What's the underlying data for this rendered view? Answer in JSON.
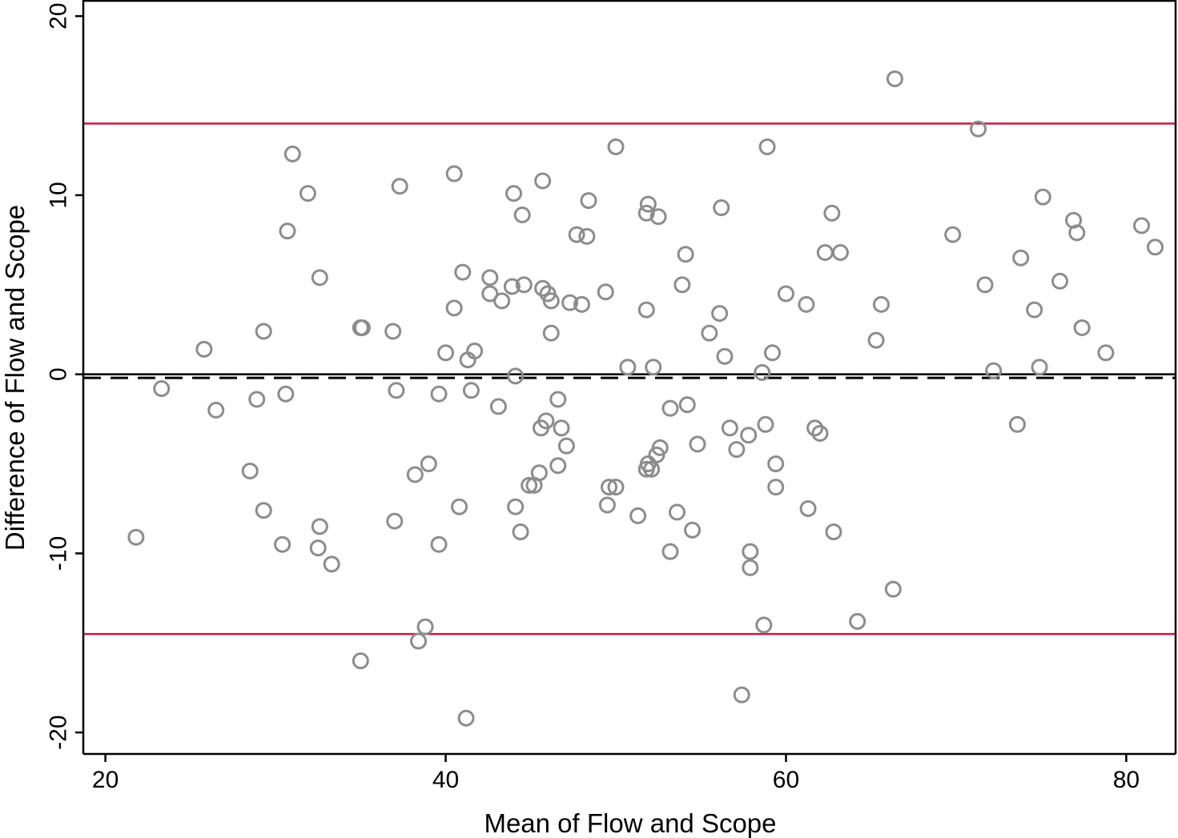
{
  "chart_data": {
    "type": "scatter",
    "title": "",
    "xlabel": "Mean of Flow and Scope",
    "ylabel": "Difference of Flow and Scope",
    "xlim": [
      18.7,
      82.9
    ],
    "ylim": [
      -21.2,
      20.9
    ],
    "xticks": [
      20,
      40,
      60,
      80
    ],
    "yticks": [
      20,
      10,
      0,
      -10,
      -20
    ],
    "grid": false,
    "legend": "none",
    "reference_lines": [
      {
        "name": "upper limit of agreement",
        "y": 14.0,
        "color": "#d0153f",
        "style": "solid"
      },
      {
        "name": "zero line",
        "y": 0.0,
        "color": "#000000",
        "style": "solid"
      },
      {
        "name": "mean difference",
        "y": -0.2,
        "color": "#000000",
        "style": "dashed"
      },
      {
        "name": "lower limit of agreement",
        "y": -14.5,
        "color": "#d0153f",
        "style": "solid"
      }
    ],
    "marker_color": "#8c8c8c",
    "points": [
      [
        21.8,
        -9.1
      ],
      [
        23.3,
        -0.8
      ],
      [
        25.8,
        1.4
      ],
      [
        26.5,
        -2.0
      ],
      [
        28.5,
        -5.4
      ],
      [
        28.9,
        -1.4
      ],
      [
        29.3,
        2.4
      ],
      [
        29.3,
        -7.6
      ],
      [
        30.4,
        -9.5
      ],
      [
        30.6,
        -1.1
      ],
      [
        30.7,
        8.0
      ],
      [
        31.0,
        12.3
      ],
      [
        31.9,
        10.1
      ],
      [
        32.5,
        -9.7
      ],
      [
        32.6,
        5.4
      ],
      [
        32.6,
        -8.5
      ],
      [
        33.3,
        -10.6
      ],
      [
        35.0,
        2.6
      ],
      [
        35.1,
        2.6
      ],
      [
        35.0,
        -16.0
      ],
      [
        36.9,
        2.4
      ],
      [
        37.0,
        -8.2
      ],
      [
        37.1,
        -0.9
      ],
      [
        37.3,
        10.5
      ],
      [
        38.2,
        -5.6
      ],
      [
        38.4,
        -14.9
      ],
      [
        38.8,
        -14.1
      ],
      [
        39.0,
        -5.0
      ],
      [
        39.6,
        -9.5
      ],
      [
        39.6,
        -1.1
      ],
      [
        40.0,
        1.2
      ],
      [
        40.5,
        11.2
      ],
      [
        40.5,
        3.7
      ],
      [
        40.8,
        -7.4
      ],
      [
        41.0,
        5.7
      ],
      [
        41.2,
        -19.2
      ],
      [
        41.3,
        0.8
      ],
      [
        41.5,
        -0.9
      ],
      [
        41.7,
        1.3
      ],
      [
        42.6,
        5.4
      ],
      [
        42.6,
        4.5
      ],
      [
        43.1,
        -1.8
      ],
      [
        43.3,
        4.1
      ],
      [
        43.9,
        4.9
      ],
      [
        44.0,
        10.1
      ],
      [
        44.1,
        -0.1
      ],
      [
        44.1,
        -7.4
      ],
      [
        44.4,
        -8.8
      ],
      [
        44.5,
        8.9
      ],
      [
        44.6,
        5.0
      ],
      [
        44.9,
        -6.2
      ],
      [
        45.2,
        -6.2
      ],
      [
        45.5,
        -5.5
      ],
      [
        45.6,
        -3.0
      ],
      [
        45.7,
        4.8
      ],
      [
        45.7,
        10.8
      ],
      [
        45.9,
        -2.6
      ],
      [
        46.0,
        4.5
      ],
      [
        46.2,
        4.1
      ],
      [
        46.2,
        2.3
      ],
      [
        46.6,
        -1.4
      ],
      [
        46.6,
        -5.1
      ],
      [
        46.8,
        -3.0
      ],
      [
        47.1,
        -4.0
      ],
      [
        47.3,
        4.0
      ],
      [
        47.7,
        7.8
      ],
      [
        48.0,
        3.9
      ],
      [
        48.3,
        7.7
      ],
      [
        48.4,
        9.7
      ],
      [
        49.4,
        4.6
      ],
      [
        49.5,
        -7.3
      ],
      [
        49.6,
        -6.3
      ],
      [
        50.0,
        12.7
      ],
      [
        50.0,
        -6.3
      ],
      [
        50.7,
        0.4
      ],
      [
        51.3,
        -7.9
      ],
      [
        51.8,
        3.6
      ],
      [
        51.8,
        9.0
      ],
      [
        51.8,
        -5.3
      ],
      [
        51.9,
        9.5
      ],
      [
        51.9,
        -5.0
      ],
      [
        52.1,
        -5.3
      ],
      [
        52.2,
        0.4
      ],
      [
        52.4,
        -4.5
      ],
      [
        52.5,
        8.8
      ],
      [
        52.6,
        -4.1
      ],
      [
        53.2,
        -1.9
      ],
      [
        53.2,
        -9.9
      ],
      [
        53.6,
        -7.7
      ],
      [
        53.9,
        5.0
      ],
      [
        54.1,
        6.7
      ],
      [
        54.2,
        -1.7
      ],
      [
        54.5,
        -8.7
      ],
      [
        54.8,
        -3.9
      ],
      [
        55.5,
        2.3
      ],
      [
        56.1,
        3.4
      ],
      [
        56.2,
        9.3
      ],
      [
        56.4,
        1.0
      ],
      [
        56.7,
        -3.0
      ],
      [
        57.1,
        -4.2
      ],
      [
        57.4,
        -17.9
      ],
      [
        57.8,
        -3.4
      ],
      [
        57.9,
        -9.9
      ],
      [
        57.9,
        -10.8
      ],
      [
        58.6,
        0.1
      ],
      [
        58.7,
        -14.0
      ],
      [
        58.8,
        -2.8
      ],
      [
        58.9,
        12.7
      ],
      [
        59.2,
        1.2
      ],
      [
        59.4,
        -6.3
      ],
      [
        59.4,
        -5.0
      ],
      [
        60.0,
        4.5
      ],
      [
        61.2,
        3.9
      ],
      [
        61.3,
        -7.5
      ],
      [
        61.7,
        -3.0
      ],
      [
        62.0,
        -3.3
      ],
      [
        62.3,
        6.8
      ],
      [
        62.7,
        9.0
      ],
      [
        62.8,
        -8.8
      ],
      [
        63.2,
        6.8
      ],
      [
        64.2,
        -13.8
      ],
      [
        65.3,
        1.9
      ],
      [
        65.6,
        3.9
      ],
      [
        66.3,
        -12.0
      ],
      [
        66.4,
        16.5
      ],
      [
        69.8,
        7.8
      ],
      [
        71.3,
        13.7
      ],
      [
        71.7,
        5.0
      ],
      [
        72.2,
        0.2
      ],
      [
        73.6,
        -2.8
      ],
      [
        73.8,
        6.5
      ],
      [
        74.6,
        3.6
      ],
      [
        74.9,
        0.4
      ],
      [
        75.1,
        9.9
      ],
      [
        76.1,
        5.2
      ],
      [
        76.9,
        8.6
      ],
      [
        77.1,
        7.9
      ],
      [
        77.4,
        2.6
      ],
      [
        78.8,
        1.2
      ],
      [
        80.9,
        8.3
      ],
      [
        81.7,
        7.1
      ]
    ]
  }
}
